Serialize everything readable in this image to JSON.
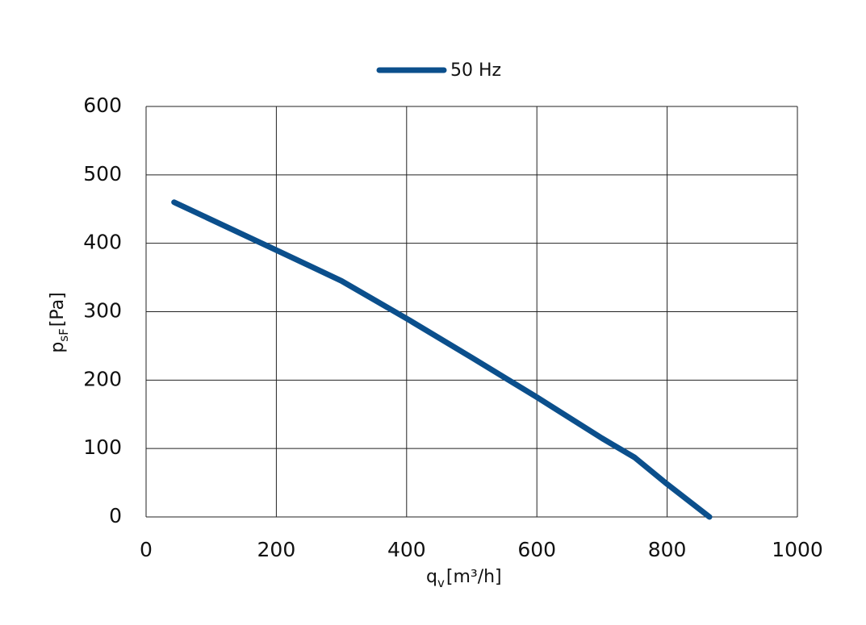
{
  "chart_data": {
    "type": "line",
    "x_label": {
      "main": "q",
      "sub": "v",
      "unit": "[m³/h]"
    },
    "y_label": {
      "main": "p",
      "sub": "sF",
      "unit": "[Pa]"
    },
    "x": [
      43,
      200,
      300,
      400,
      500,
      600,
      700,
      750,
      800,
      865
    ],
    "series": [
      {
        "name": "50 Hz",
        "color": "#0b4f8c",
        "values": [
          460,
          390,
          345,
          290,
          233,
          175,
          115,
          87,
          48,
          0
        ]
      }
    ],
    "xlim": [
      0,
      1000
    ],
    "xticks": [
      0,
      200,
      400,
      600,
      800,
      1000
    ],
    "ylim": [
      0,
      600
    ],
    "yticks": [
      0,
      100,
      200,
      300,
      400,
      500,
      600
    ],
    "grid": true,
    "legend": "top"
  }
}
